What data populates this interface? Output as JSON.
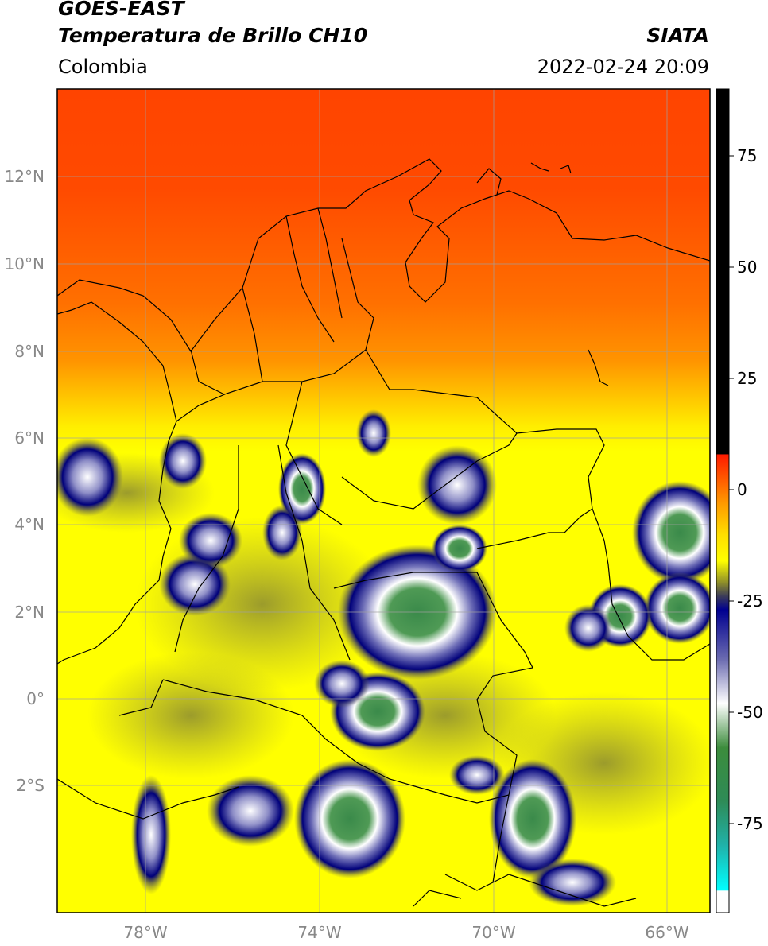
{
  "header": {
    "satellite": "GOES-EAST",
    "product": "Temperatura de Brillo CH10",
    "organization": "SIATA",
    "region": "Colombia",
    "datetime": "2022-02-24 20:09"
  },
  "map": {
    "lat_labels": [
      "12°N",
      "10°N",
      "8°N",
      "6°N",
      "4°N",
      "2°N",
      "0°",
      "2°S"
    ],
    "lon_labels": [
      "78°W",
      "74°W",
      "70°W",
      "66°W"
    ],
    "gridline_color": "#a0a0a0",
    "border_color": "#000000"
  },
  "colorbar": {
    "tick_labels": [
      "75",
      "50",
      "25",
      "0",
      "-25",
      "-50",
      "-75"
    ],
    "tick_values": [
      75,
      50,
      25,
      0,
      -25,
      -50,
      -75
    ],
    "range": [
      -95,
      90
    ],
    "stops": [
      {
        "v": 90,
        "c": "#000000"
      },
      {
        "v": 8,
        "c": "#000000"
      },
      {
        "v": 7.9,
        "c": "#ff1a00"
      },
      {
        "v": -3,
        "c": "#ff9900"
      },
      {
        "v": -10,
        "c": "#ffdd00"
      },
      {
        "v": -16,
        "c": "#ffff00"
      },
      {
        "v": -21,
        "c": "#8b8b2b"
      },
      {
        "v": -24,
        "c": "#3a3a5a"
      },
      {
        "v": -27,
        "c": "#000090"
      },
      {
        "v": -38,
        "c": "#6a6ab0"
      },
      {
        "v": -48,
        "c": "#ffffff"
      },
      {
        "v": -58,
        "c": "#3c8c3c"
      },
      {
        "v": -70,
        "c": "#2e8b57"
      },
      {
        "v": -80,
        "c": "#20b2aa"
      },
      {
        "v": -90,
        "c": "#00ffff"
      },
      {
        "v": -90.1,
        "c": "#ffffff"
      },
      {
        "v": -95,
        "c": "#ffffff"
      }
    ]
  },
  "colors": {
    "warm_north": "#ff4a00",
    "orange": "#ff8a00",
    "yellow": "#ffff00",
    "olive": "#8e8e3a",
    "deep_blue": "#00007a",
    "white_cloud": "#ffffff",
    "green_core": "#3a8a4a"
  }
}
